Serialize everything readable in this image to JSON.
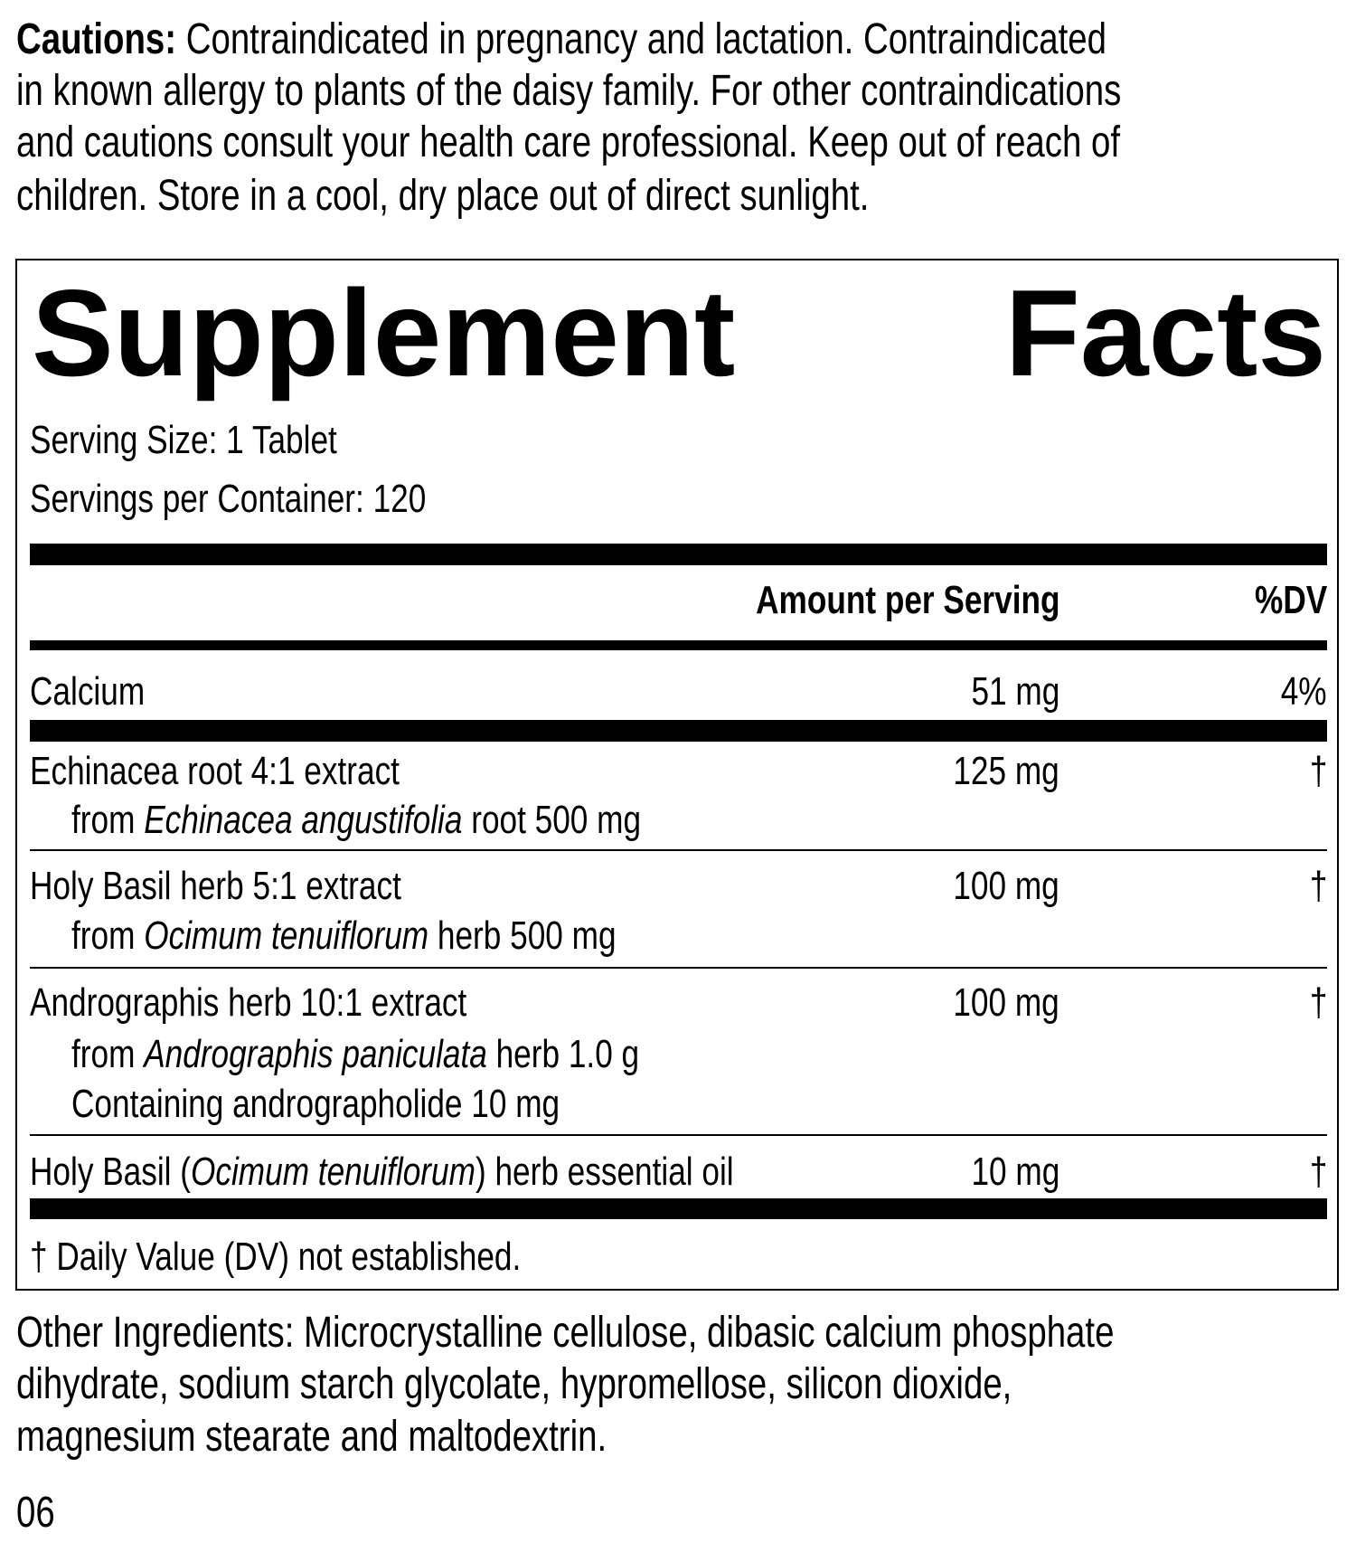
{
  "cautions": {
    "label": "Cautions:",
    "lines": [
      " Contraindicated in pregnancy and lactation. Contraindicated",
      "in known allergy to plants of the daisy family. For other contraindications",
      "and cautions consult your health care professional. Keep out of reach of",
      "children. Store in a cool, dry place out of direct sunlight."
    ]
  },
  "facts": {
    "title_word1": "Supplement",
    "title_word2": "Facts",
    "serving_size": "Serving Size: 1 Tablet",
    "servings_per_container": "Servings per Container: 120",
    "col_amount": "Amount per Serving",
    "col_dv": "%DV",
    "rows": [
      {
        "name": "Calcium",
        "amount": "51 mg",
        "dv": "4%"
      },
      {
        "name": "Echinacea root 4:1 extract",
        "sub_pre": "from ",
        "sub_italic": "Echinacea angustifolia",
        "sub_post": " root 500 mg",
        "amount": "125 mg",
        "dv": "†"
      },
      {
        "name": "Holy Basil herb 5:1 extract",
        "sub_pre": "from ",
        "sub_italic": "Ocimum tenuiflorum",
        "sub_post": " herb 500 mg",
        "amount": "100 mg",
        "dv": "†"
      },
      {
        "name": "Andrographis herb 10:1 extract",
        "sub_pre": "from ",
        "sub_italic": "Andrographis paniculata",
        "sub_post": " herb 1.0 g",
        "sub2": "Containing andrographolide 10 mg",
        "amount": "100 mg",
        "dv": "†"
      },
      {
        "name_pre": "Holy Basil (",
        "name_italic": "Ocimum tenuiflorum",
        "name_post": ") herb essential oil",
        "amount": "10 mg",
        "dv": "†"
      }
    ],
    "footnote": "† Daily Value (DV) not established."
  },
  "other_ingredients": {
    "lines": [
      "Other Ingredients: Microcrystalline cellulose, dibasic calcium phosphate",
      "dihydrate, sodium starch glycolate, hypromellose, silicon dioxide,",
      "magnesium stearate and maltodextrin."
    ]
  },
  "code": "06"
}
